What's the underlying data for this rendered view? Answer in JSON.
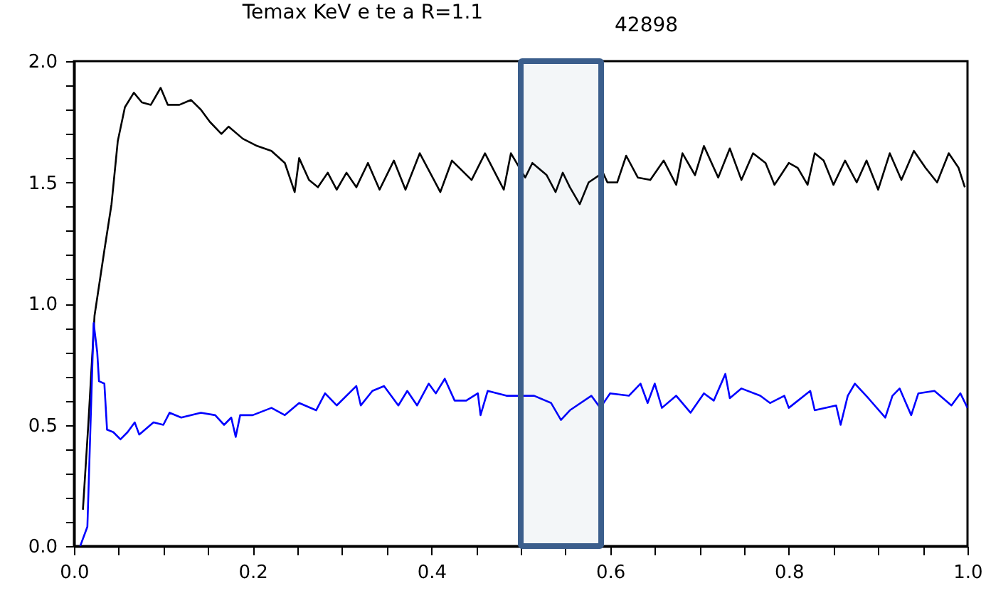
{
  "chart_data": {
    "type": "line",
    "title": "Temax KeV e te a R=1.1",
    "annotations": [
      "42898"
    ],
    "xlim": [
      0,
      1
    ],
    "ylim": [
      0,
      2
    ],
    "xticks": [
      {
        "value": 0,
        "label": "0.0"
      },
      {
        "value": 0.05,
        "label": null
      },
      {
        "value": 0.1,
        "label": null
      },
      {
        "value": 0.15,
        "label": null
      },
      {
        "value": 0.2,
        "label": "0.2"
      },
      {
        "value": 0.25,
        "label": null
      },
      {
        "value": 0.3,
        "label": null
      },
      {
        "value": 0.35,
        "label": null
      },
      {
        "value": 0.4,
        "label": "0.4"
      },
      {
        "value": 0.45,
        "label": null
      },
      {
        "value": 0.5,
        "label": null
      },
      {
        "value": 0.55,
        "label": null
      },
      {
        "value": 0.6,
        "label": "0.6"
      },
      {
        "value": 0.65,
        "label": null
      },
      {
        "value": 0.7,
        "label": null
      },
      {
        "value": 0.75,
        "label": null
      },
      {
        "value": 0.8,
        "label": "0.8"
      },
      {
        "value": 0.85,
        "label": null
      },
      {
        "value": 0.9,
        "label": null
      },
      {
        "value": 0.95,
        "label": null
      },
      {
        "value": 1,
        "label": "1.0"
      }
    ],
    "yticks": [
      {
        "value": 0,
        "label": "0.0"
      },
      {
        "value": 0.1,
        "label": null
      },
      {
        "value": 0.2,
        "label": null
      },
      {
        "value": 0.3,
        "label": null
      },
      {
        "value": 0.4,
        "label": null
      },
      {
        "value": 0.5,
        "label": "0.5"
      },
      {
        "value": 0.6,
        "label": null
      },
      {
        "value": 0.7,
        "label": null
      },
      {
        "value": 0.8,
        "label": null
      },
      {
        "value": 0.9,
        "label": null
      },
      {
        "value": 1,
        "label": "1.0"
      },
      {
        "value": 1.1,
        "label": null
      },
      {
        "value": 1.2,
        "label": null
      },
      {
        "value": 1.3,
        "label": null
      },
      {
        "value": 1.4,
        "label": null
      },
      {
        "value": 1.5,
        "label": "1.5"
      },
      {
        "value": 1.6,
        "label": null
      },
      {
        "value": 1.7,
        "label": null
      },
      {
        "value": 1.8,
        "label": null
      },
      {
        "value": 1.9,
        "label": null
      },
      {
        "value": 2,
        "label": "2.0"
      }
    ],
    "bands": [
      {
        "axis": "x",
        "from": 0.5,
        "to": 0.59,
        "color": "#3b5e8c"
      }
    ],
    "series": [
      {
        "color": "#000000",
        "x": [
          0.01,
          0.016,
          0.023,
          0.034,
          0.042,
          0.049,
          0.057,
          0.067,
          0.076,
          0.086,
          0.097,
          0.105,
          0.118,
          0.131,
          0.142,
          0.152,
          0.165,
          0.173,
          0.189,
          0.205,
          0.221,
          0.236,
          0.247,
          0.252,
          0.263,
          0.273,
          0.284,
          0.294,
          0.305,
          0.316,
          0.329,
          0.342,
          0.358,
          0.371,
          0.387,
          0.4,
          0.41,
          0.423,
          0.445,
          0.46,
          0.481,
          0.489,
          0.505,
          0.513,
          0.529,
          0.539,
          0.547,
          0.555,
          0.566,
          0.576,
          0.592,
          0.597,
          0.608,
          0.618,
          0.631,
          0.645,
          0.66,
          0.674,
          0.681,
          0.695,
          0.705,
          0.721,
          0.734,
          0.747,
          0.76,
          0.774,
          0.784,
          0.8,
          0.81,
          0.821,
          0.829,
          0.839,
          0.85,
          0.863,
          0.876,
          0.887,
          0.9,
          0.913,
          0.926,
          0.94,
          0.953,
          0.966,
          0.979,
          0.99,
          0.997
        ],
        "values": [
          0.15,
          0.5,
          0.95,
          1.22,
          1.41,
          1.67,
          1.81,
          1.87,
          1.83,
          1.82,
          1.89,
          1.82,
          1.82,
          1.84,
          1.8,
          1.75,
          1.7,
          1.73,
          1.68,
          1.65,
          1.63,
          1.58,
          1.46,
          1.6,
          1.51,
          1.48,
          1.54,
          1.47,
          1.54,
          1.48,
          1.58,
          1.47,
          1.59,
          1.47,
          1.62,
          1.53,
          1.46,
          1.59,
          1.51,
          1.62,
          1.47,
          1.62,
          1.52,
          1.58,
          1.53,
          1.46,
          1.54,
          1.48,
          1.41,
          1.5,
          1.54,
          1.5,
          1.5,
          1.61,
          1.52,
          1.51,
          1.59,
          1.49,
          1.62,
          1.53,
          1.65,
          1.52,
          1.64,
          1.51,
          1.62,
          1.58,
          1.49,
          1.58,
          1.56,
          1.49,
          1.62,
          1.59,
          1.49,
          1.59,
          1.5,
          1.59,
          1.47,
          1.62,
          1.51,
          1.63,
          1.56,
          1.5,
          1.62,
          1.56,
          1.48
        ]
      },
      {
        "color": "#0000ff",
        "x": [
          0.007,
          0.015,
          0.022,
          0.026,
          0.028,
          0.034,
          0.037,
          0.044,
          0.052,
          0.06,
          0.068,
          0.073,
          0.089,
          0.1,
          0.107,
          0.12,
          0.142,
          0.158,
          0.168,
          0.176,
          0.181,
          0.186,
          0.2,
          0.221,
          0.236,
          0.252,
          0.271,
          0.281,
          0.294,
          0.316,
          0.321,
          0.334,
          0.347,
          0.363,
          0.373,
          0.384,
          0.397,
          0.405,
          0.415,
          0.426,
          0.439,
          0.452,
          0.455,
          0.463,
          0.484,
          0.494,
          0.515,
          0.534,
          0.545,
          0.555,
          0.579,
          0.589,
          0.6,
          0.621,
          0.634,
          0.642,
          0.65,
          0.658,
          0.674,
          0.69,
          0.705,
          0.716,
          0.729,
          0.734,
          0.747,
          0.768,
          0.779,
          0.795,
          0.8,
          0.824,
          0.829,
          0.853,
          0.858,
          0.866,
          0.874,
          0.889,
          0.908,
          0.916,
          0.924,
          0.937,
          0.945,
          0.963,
          0.982,
          0.992,
          1.0
        ],
        "values": [
          0,
          0.08,
          0.92,
          0.8,
          0.68,
          0.67,
          0.48,
          0.47,
          0.44,
          0.47,
          0.51,
          0.46,
          0.51,
          0.5,
          0.55,
          0.53,
          0.55,
          0.54,
          0.5,
          0.53,
          0.45,
          0.54,
          0.54,
          0.57,
          0.54,
          0.59,
          0.56,
          0.63,
          0.58,
          0.66,
          0.58,
          0.64,
          0.66,
          0.58,
          0.64,
          0.58,
          0.67,
          0.63,
          0.69,
          0.6,
          0.6,
          0.63,
          0.54,
          0.64,
          0.62,
          0.62,
          0.62,
          0.59,
          0.52,
          0.56,
          0.62,
          0.57,
          0.63,
          0.62,
          0.67,
          0.59,
          0.67,
          0.57,
          0.62,
          0.55,
          0.63,
          0.6,
          0.71,
          0.61,
          0.65,
          0.62,
          0.59,
          0.62,
          0.57,
          0.64,
          0.56,
          0.58,
          0.5,
          0.62,
          0.67,
          0.61,
          0.53,
          0.62,
          0.65,
          0.54,
          0.63,
          0.64,
          0.58,
          0.63,
          0.57
        ]
      }
    ]
  }
}
